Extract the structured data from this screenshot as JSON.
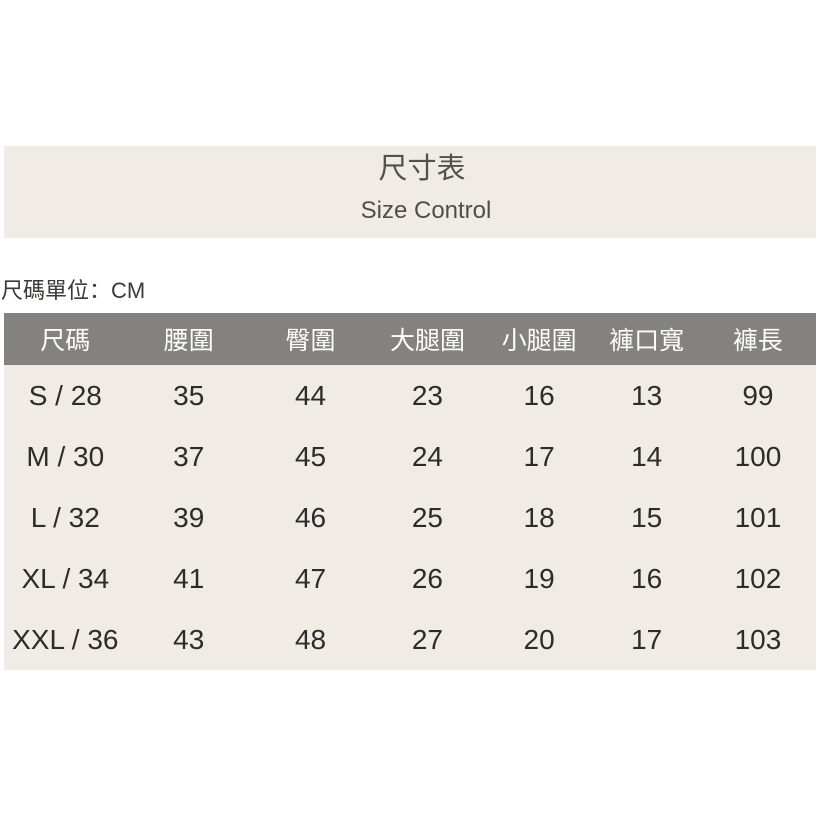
{
  "page": {
    "title": "尺寸表",
    "subtitle": "Size Control",
    "unit_note": "尺碼單位：CM"
  },
  "colors": {
    "panel_beige": "#f0ece5",
    "header_gray": "#848280",
    "header_text": "#ffffff",
    "body_text": "#2d2c2a",
    "title_text": "#53514d"
  },
  "chart_data": {
    "type": "table",
    "title": "尺寸表",
    "subtitle": "Size Control",
    "unit": "CM",
    "columns": [
      "尺碼",
      "腰圍",
      "臀圍",
      "大腿圍",
      "小腿圍",
      "褲口寬",
      "褲長"
    ],
    "rows": [
      [
        "S / 28",
        "35",
        "44",
        "23",
        "16",
        "13",
        "99"
      ],
      [
        "M / 30",
        "37",
        "45",
        "24",
        "17",
        "14",
        "100"
      ],
      [
        "L / 32",
        "39",
        "46",
        "25",
        "18",
        "15",
        "101"
      ],
      [
        "XL / 34",
        "41",
        "47",
        "26",
        "19",
        "16",
        "102"
      ],
      [
        "XXL / 36",
        "43",
        "48",
        "27",
        "20",
        "17",
        "103"
      ]
    ]
  }
}
